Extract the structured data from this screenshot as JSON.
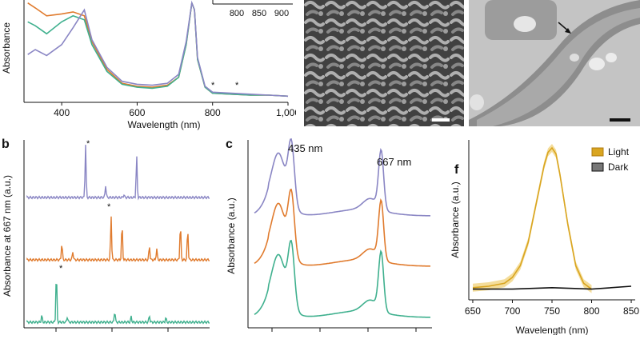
{
  "panel_a": {
    "ylabel": "Absorbance",
    "xlabel": "Wavelength (nm)",
    "xticks": [
      "400",
      "600",
      "800",
      "1,000"
    ],
    "inset_xticks": [
      "800",
      "850",
      "900"
    ],
    "star": "*",
    "colors": {
      "orange": "#e07b2e",
      "green": "#3fb08e",
      "purple": "#8a86c4"
    }
  },
  "panel_b": {
    "letter": "b",
    "ylabel": "Absorbance at 667 nm (a.u.)",
    "star": "*"
  },
  "panel_c": {
    "letter": "c",
    "ylabel": "Absorbance (a.u.)",
    "peak1": "435 nm",
    "peak2": "667 nm"
  },
  "panel_f": {
    "letter": "f",
    "ylabel": "Absorbance (a.u.)",
    "xlabel": "Wavelength (nm)",
    "xticks": [
      "650",
      "700",
      "750",
      "800",
      "850"
    ],
    "legend": [
      "Light",
      "Dark"
    ],
    "colors": {
      "light": "#d9a520",
      "dark": "#111111"
    }
  },
  "chart_data": [
    {
      "type": "line",
      "panel": "a",
      "xlabel": "Wavelength (nm)",
      "ylabel": "Absorbance",
      "xlim": [
        300,
        1000
      ],
      "series": [
        {
          "color": "#e07b2e",
          "x": [
            310,
            330,
            360,
            400,
            430,
            460,
            480,
            520,
            560,
            600,
            640,
            680,
            710,
            730,
            745,
            752,
            760,
            780,
            800,
            850,
            900,
            950,
            1000
          ],
          "y": [
            0.97,
            0.92,
            0.84,
            0.86,
            0.88,
            0.84,
            0.58,
            0.3,
            0.16,
            0.13,
            0.12,
            0.14,
            0.22,
            0.55,
            0.97,
            0.9,
            0.4,
            0.12,
            0.06,
            0.05,
            0.04,
            0.04,
            0.03
          ]
        },
        {
          "color": "#3fb08e",
          "x": [
            310,
            330,
            360,
            400,
            430,
            460,
            480,
            520,
            560,
            600,
            640,
            680,
            710,
            730,
            745,
            752,
            760,
            780,
            800,
            850,
            900,
            950,
            1000
          ],
          "y": [
            0.78,
            0.74,
            0.66,
            0.78,
            0.84,
            0.8,
            0.55,
            0.28,
            0.15,
            0.12,
            0.11,
            0.13,
            0.22,
            0.55,
            0.97,
            0.9,
            0.4,
            0.12,
            0.06,
            0.05,
            0.04,
            0.04,
            0.03
          ]
        },
        {
          "color": "#8a86c4",
          "x": [
            310,
            330,
            360,
            400,
            430,
            460,
            480,
            520,
            560,
            600,
            640,
            680,
            710,
            730,
            745,
            752,
            760,
            780,
            800,
            850,
            900,
            950,
            1000
          ],
          "y": [
            0.45,
            0.5,
            0.44,
            0.55,
            0.72,
            0.9,
            0.6,
            0.32,
            0.18,
            0.15,
            0.14,
            0.16,
            0.25,
            0.58,
            0.97,
            0.9,
            0.42,
            0.13,
            0.07,
            0.06,
            0.05,
            0.04,
            0.03
          ]
        }
      ]
    },
    {
      "type": "line",
      "panel": "b",
      "ylabel": "Absorbance at 667 nm (a.u.)",
      "series": [
        {
          "color": "#8a86c4",
          "peaks": [
            [
              0.32,
              0.95
            ],
            [
              0.43,
              0.22
            ],
            [
              0.53,
              0.05
            ],
            [
              0.6,
              0.75
            ]
          ]
        },
        {
          "color": "#e07b2e",
          "peaks": [
            [
              0.19,
              0.3
            ],
            [
              0.25,
              0.15
            ],
            [
              0.46,
              0.8
            ],
            [
              0.52,
              0.65
            ],
            [
              0.67,
              0.25
            ],
            [
              0.71,
              0.2
            ],
            [
              0.84,
              0.65
            ],
            [
              0.88,
              0.55
            ]
          ]
        },
        {
          "color": "#3fb08e",
          "peaks": [
            [
              0.08,
              0.12
            ],
            [
              0.16,
              0.9
            ],
            [
              0.22,
              0.1
            ],
            [
              0.48,
              0.2
            ],
            [
              0.57,
              0.1
            ],
            [
              0.67,
              0.12
            ],
            [
              0.76,
              0.08
            ]
          ]
        }
      ]
    },
    {
      "type": "line",
      "panel": "c",
      "ylabel": "Absorbance (a.u.)",
      "annotations": [
        "435 nm",
        "667 nm"
      ],
      "series": [
        {
          "color": "#8a86c4"
        },
        {
          "color": "#e07b2e"
        },
        {
          "color": "#3fb08e"
        }
      ]
    },
    {
      "type": "line",
      "panel": "f",
      "xlabel": "Wavelength (nm)",
      "ylabel": "Absorbance (a.u.)",
      "xlim": [
        645,
        855
      ],
      "legend": [
        "Light",
        "Dark"
      ],
      "series": [
        {
          "name": "Light",
          "color": "#d9a520",
          "x": [
            650,
            670,
            690,
            700,
            710,
            720,
            730,
            740,
            745,
            750,
            755,
            760,
            770,
            780,
            790,
            800
          ],
          "y": [
            0.05,
            0.06,
            0.08,
            0.12,
            0.2,
            0.36,
            0.62,
            0.88,
            0.97,
            1.0,
            0.96,
            0.82,
            0.48,
            0.2,
            0.08,
            0.04
          ]
        },
        {
          "name": "Dark",
          "color": "#111111",
          "x": [
            650,
            700,
            750,
            800,
            850
          ],
          "y": [
            0.04,
            0.04,
            0.05,
            0.04,
            0.06
          ]
        }
      ]
    }
  ]
}
